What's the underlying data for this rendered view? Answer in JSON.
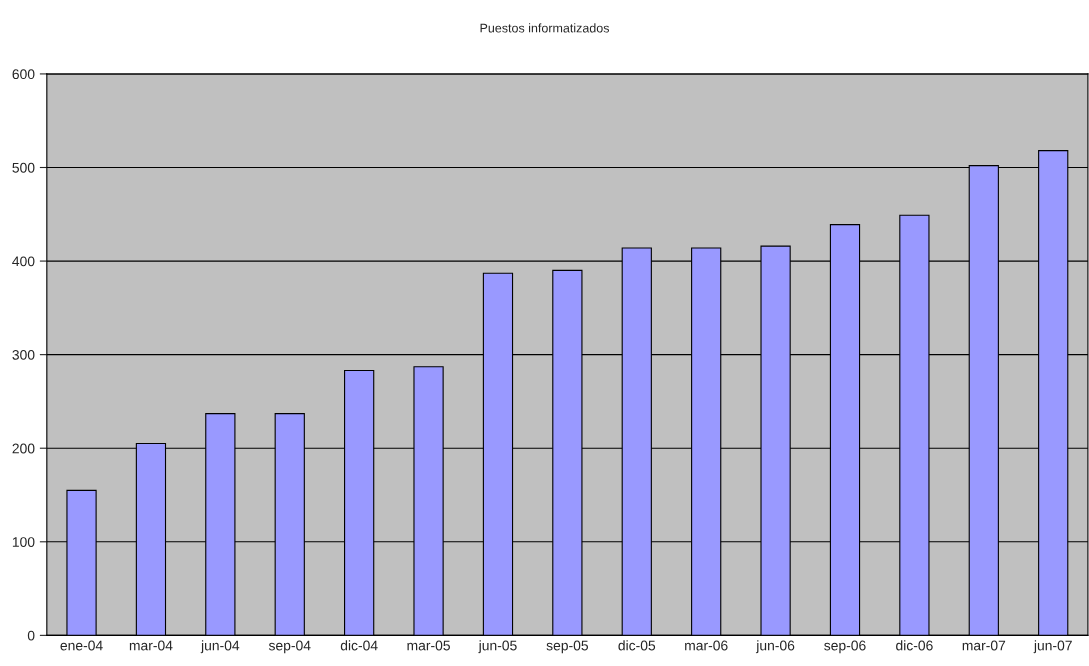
{
  "chart_data": {
    "type": "bar",
    "title": "Puestos informatizados",
    "categories": [
      "ene-04",
      "mar-04",
      "jun-04",
      "sep-04",
      "dic-04",
      "mar-05",
      "jun-05",
      "sep-05",
      "dic-05",
      "mar-06",
      "jun-06",
      "sep-06",
      "dic-06",
      "mar-07",
      "jun-07"
    ],
    "values": [
      155,
      205,
      237,
      237,
      283,
      287,
      387,
      390,
      414,
      414,
      416,
      439,
      449,
      502,
      518
    ],
    "color": "#9999ff",
    "ylim": [
      0,
      600
    ],
    "yticks": [
      0,
      100,
      200,
      300,
      400,
      500,
      600
    ],
    "grid": "y",
    "legend": false
  }
}
